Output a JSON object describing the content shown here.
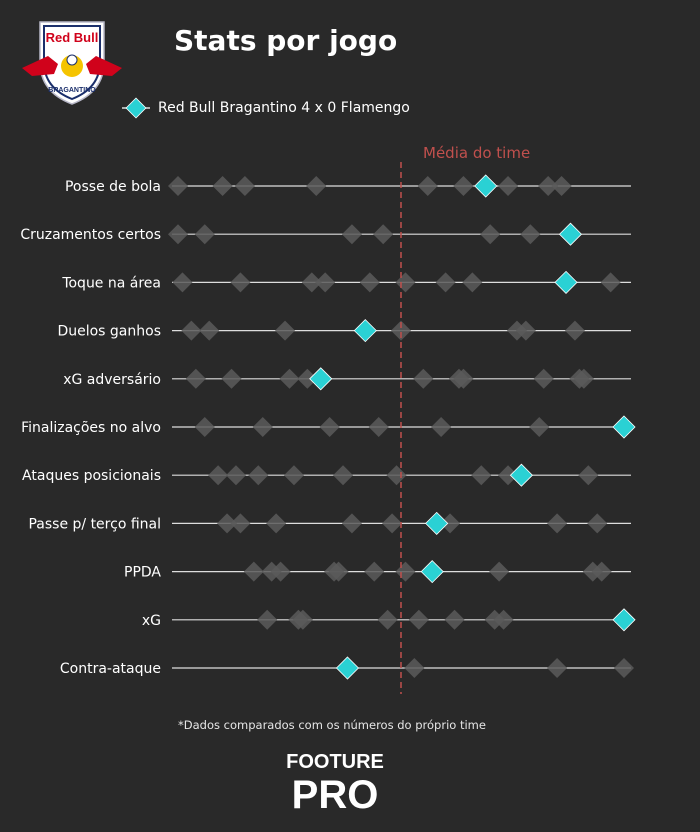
{
  "header": {
    "title": "Stats por jogo",
    "legend_label": "Red Bull Bragantino 4 x 0 Flamengo"
  },
  "logo": {
    "text_top": "Red Bull",
    "text_bottom": "BRAGANTINO"
  },
  "footer": {
    "note": "*Dados comparados com os números do próprio time",
    "brand_top": "FOOTURE",
    "brand_bottom": "PRO"
  },
  "colors": {
    "background": "#292929",
    "highlight": "#2ad1d4",
    "other_games": "#5a5a5a",
    "mean_line": "#c0504d",
    "track": "#dddddd"
  },
  "chart_data": {
    "type": "scatter",
    "scale": "normalized 0-1 per metric (relative to team's own games)",
    "mean_label": "Média do time",
    "mean_value": 0.5,
    "rows": [
      {
        "label": "Posse de bola",
        "highlight": 0.69,
        "others": [
          0.0,
          0.1,
          0.15,
          0.31,
          0.56,
          0.64,
          0.74,
          0.83,
          0.86
        ]
      },
      {
        "label": "Cruzamentos certos",
        "highlight": 0.88,
        "others": [
          0.0,
          0.06,
          0.39,
          0.46,
          0.7,
          0.79
        ]
      },
      {
        "label": "Toque na área",
        "highlight": 0.87,
        "others": [
          0.01,
          0.14,
          0.3,
          0.33,
          0.43,
          0.51,
          0.6,
          0.66,
          0.97
        ]
      },
      {
        "label": "Duelos ganhos",
        "highlight": 0.42,
        "others": [
          0.03,
          0.07,
          0.24,
          0.5,
          0.76,
          0.78,
          0.89
        ]
      },
      {
        "label": "xG adversário",
        "highlight": 0.32,
        "others": [
          0.04,
          0.12,
          0.25,
          0.29,
          0.55,
          0.63,
          0.64,
          0.82,
          0.9,
          0.91
        ]
      },
      {
        "label": "Finalizações no alvo",
        "highlight": 1.0,
        "others": [
          0.06,
          0.19,
          0.34,
          0.45,
          0.59,
          0.81
        ]
      },
      {
        "label": "Ataques posicionais",
        "highlight": 0.77,
        "others": [
          0.09,
          0.13,
          0.18,
          0.26,
          0.37,
          0.49,
          0.68,
          0.74,
          0.92
        ]
      },
      {
        "label": "Passe p/ terço final",
        "highlight": 0.58,
        "others": [
          0.11,
          0.14,
          0.22,
          0.39,
          0.48,
          0.61,
          0.85,
          0.94
        ]
      },
      {
        "label": "PPDA",
        "highlight": 0.57,
        "others": [
          0.17,
          0.21,
          0.23,
          0.35,
          0.36,
          0.44,
          0.51,
          0.72,
          0.93,
          0.95
        ]
      },
      {
        "label": "xG",
        "highlight": 1.0,
        "others": [
          0.2,
          0.27,
          0.28,
          0.47,
          0.54,
          0.62,
          0.71,
          0.73
        ]
      },
      {
        "label": "Contra-ataque",
        "highlight": 0.38,
        "others": [
          0.53,
          0.85,
          1.0
        ]
      }
    ]
  }
}
